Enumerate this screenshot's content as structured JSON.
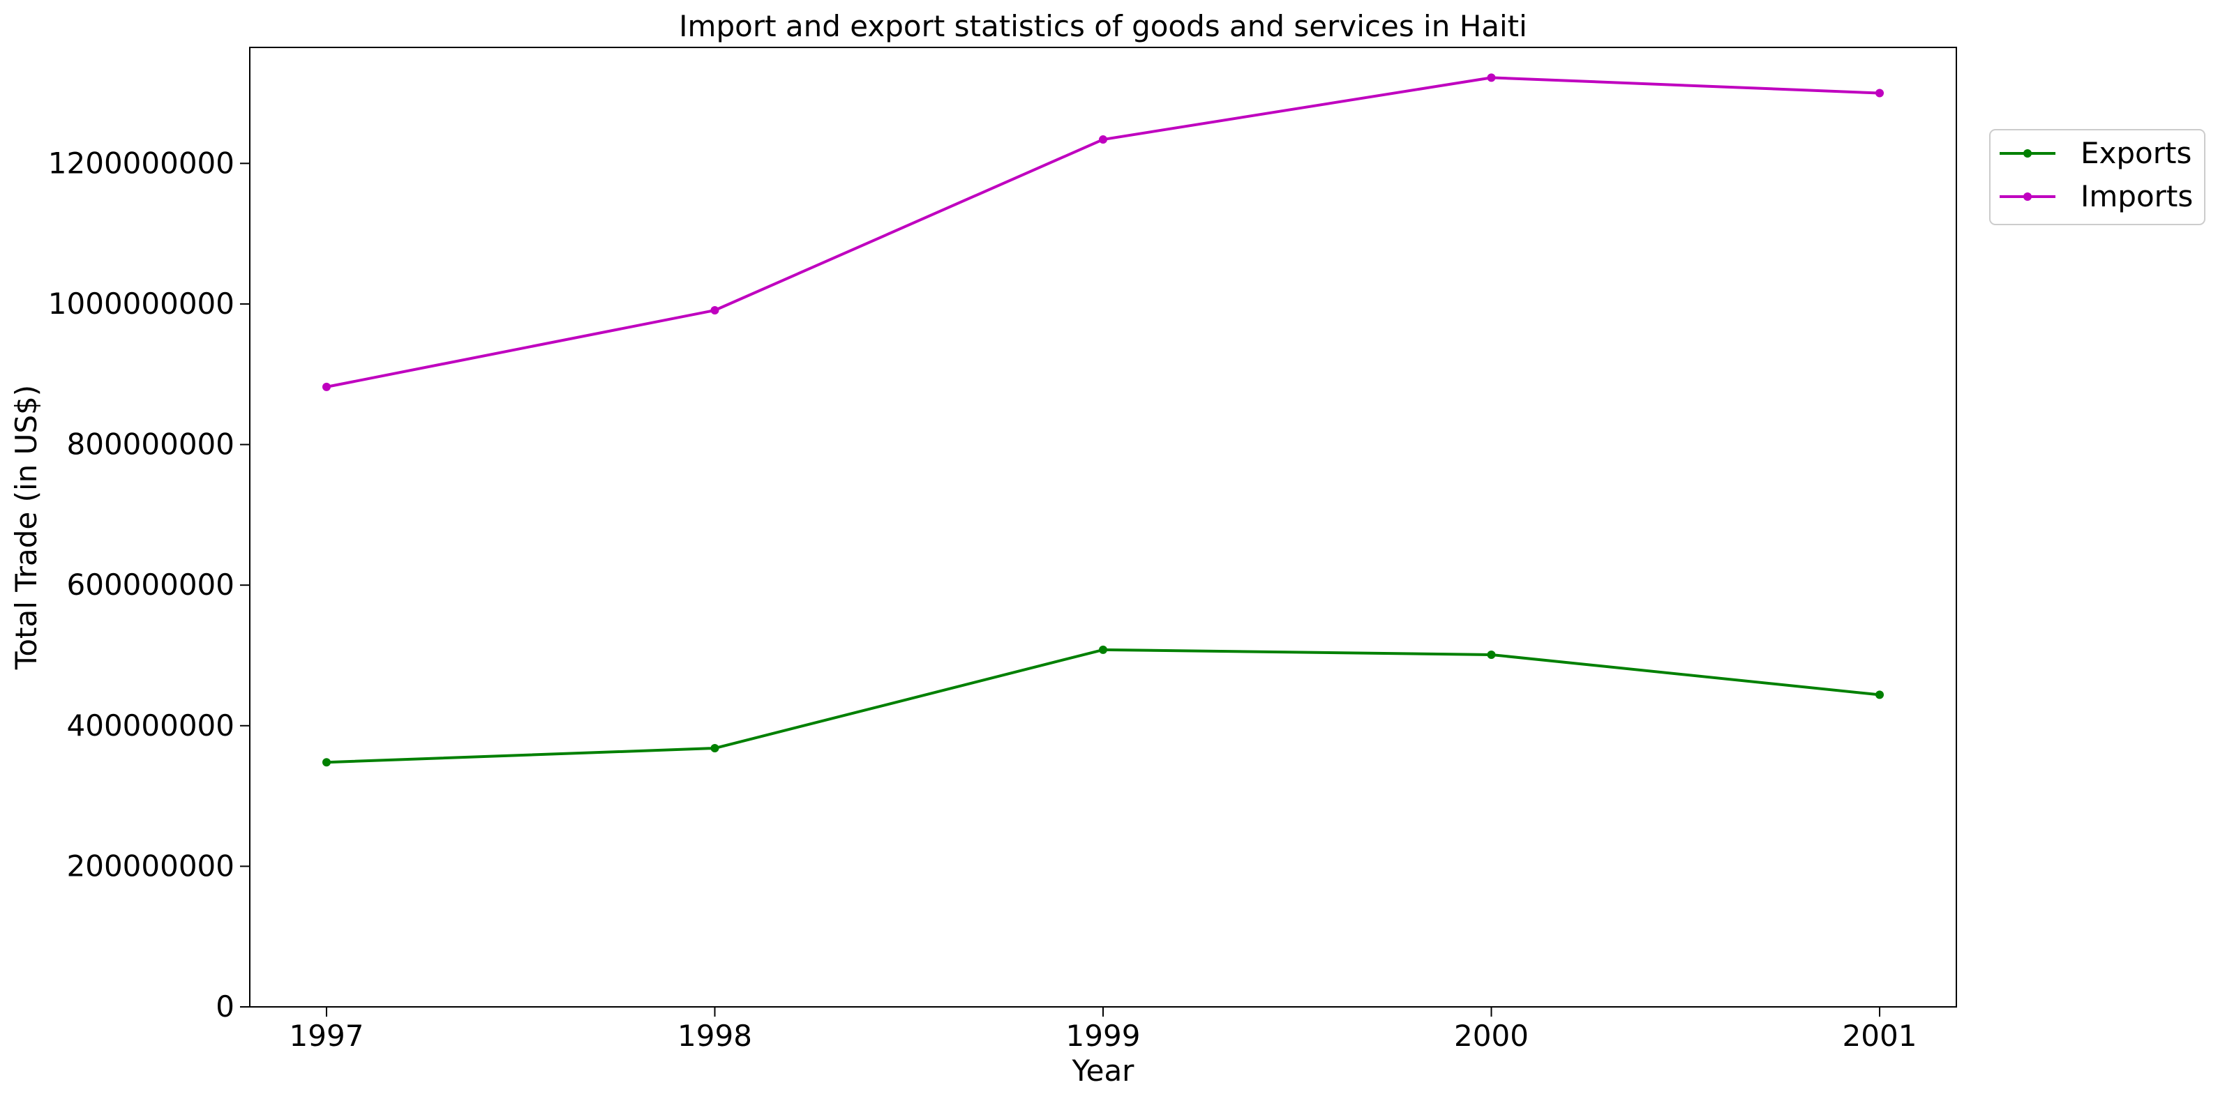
{
  "chart_data": {
    "type": "line",
    "title": "Import and export statistics of goods and services in Haiti",
    "xlabel": "Year",
    "ylabel": "Total Trade (in US$)",
    "x": [
      "1997",
      "1998",
      "1999",
      "2000",
      "2001"
    ],
    "ylim": [
      0,
      1365000000
    ],
    "yticks": [
      0,
      200000000,
      400000000,
      600000000,
      800000000,
      1000000000,
      1200000000
    ],
    "ytick_labels": [
      "0",
      "200000000",
      "400000000",
      "600000000",
      "800000000",
      "1000000000",
      "1200000000"
    ],
    "grid": false,
    "legend_position": "outside-top-right",
    "series": [
      {
        "name": "Exports",
        "color": "#008000",
        "marker": "dot",
        "values": [
          348000000,
          368000000,
          508000000,
          501000000,
          444000000
        ]
      },
      {
        "name": "Imports",
        "color": "#bf00bf",
        "marker": "dot",
        "values": [
          882000000,
          991000000,
          1234000000,
          1322000000,
          1300000000
        ]
      }
    ]
  }
}
